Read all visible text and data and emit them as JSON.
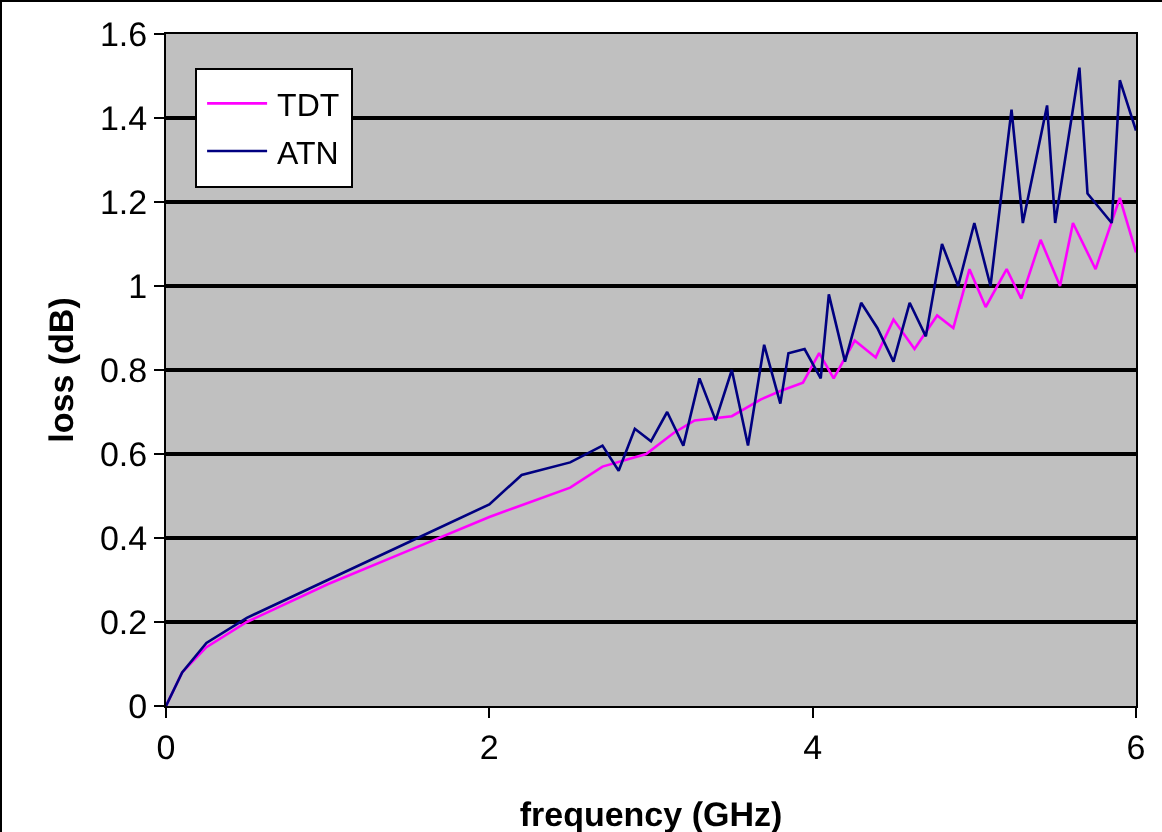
{
  "chart_data": {
    "type": "line",
    "xlabel": "frequency (GHz)",
    "ylabel": "loss (dB)",
    "xlim": [
      0,
      6
    ],
    "xticks": [
      0,
      2,
      4,
      6
    ],
    "ylim": [
      0,
      1.6
    ],
    "yticks": [
      0,
      0.2,
      0.4,
      0.6,
      0.8,
      1,
      1.2,
      1.4,
      1.6
    ],
    "grid": "y",
    "legend": "top left",
    "marker": "none",
    "line_style": "solid",
    "series": [
      {
        "name": "TDT",
        "color": "#ff00ff",
        "x": [
          0,
          0.1,
          0.25,
          0.5,
          1,
          1.5,
          2,
          2.5,
          2.7,
          2.97,
          3.14,
          3.27,
          3.5,
          3.68,
          3.8,
          3.94,
          4.04,
          4.13,
          4.26,
          4.39,
          4.5,
          4.63,
          4.77,
          4.87,
          4.97,
          5.07,
          5.2,
          5.29,
          5.41,
          5.53,
          5.61,
          5.75,
          5.9,
          6
        ],
        "values": [
          0,
          0.08,
          0.14,
          0.2,
          0.29,
          0.37,
          0.45,
          0.52,
          0.57,
          0.6,
          0.65,
          0.68,
          0.69,
          0.73,
          0.75,
          0.77,
          0.84,
          0.78,
          0.87,
          0.83,
          0.92,
          0.85,
          0.93,
          0.9,
          1.04,
          0.95,
          1.04,
          0.97,
          1.11,
          1,
          1.15,
          1.04,
          1.21,
          1.08
        ]
      },
      {
        "name": "ATN",
        "color": "#000080",
        "x": [
          0,
          0.1,
          0.25,
          0.5,
          1,
          1.5,
          2,
          2.2,
          2.5,
          2.7,
          2.8,
          2.9,
          3,
          3.1,
          3.2,
          3.3,
          3.4,
          3.5,
          3.6,
          3.7,
          3.8,
          3.85,
          3.95,
          4.05,
          4.1,
          4.2,
          4.3,
          4.4,
          4.5,
          4.6,
          4.7,
          4.8,
          4.9,
          5,
          5.1,
          5.23,
          5.3,
          5.45,
          5.5,
          5.65,
          5.7,
          5.85,
          5.9,
          6
        ],
        "values": [
          0,
          0.08,
          0.15,
          0.21,
          0.3,
          0.39,
          0.48,
          0.55,
          0.58,
          0.62,
          0.56,
          0.66,
          0.63,
          0.7,
          0.62,
          0.78,
          0.68,
          0.8,
          0.62,
          0.86,
          0.72,
          0.84,
          0.85,
          0.78,
          0.98,
          0.82,
          0.96,
          0.9,
          0.82,
          0.96,
          0.88,
          1.1,
          1,
          1.15,
          1,
          1.42,
          1.15,
          1.43,
          1.15,
          1.52,
          1.22,
          1.15,
          1.49,
          1.37
        ]
      }
    ]
  }
}
